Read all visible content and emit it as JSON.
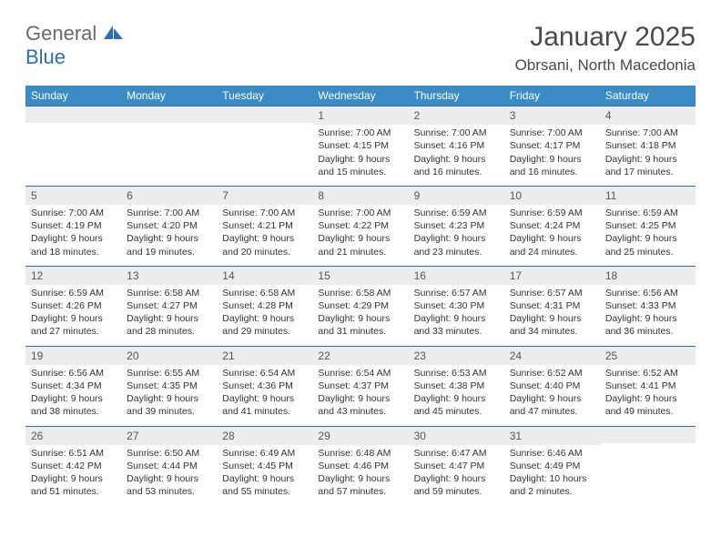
{
  "brand": {
    "word1": "General",
    "word2": "Blue"
  },
  "title": "January 2025",
  "location": "Obrsani, North Macedonia",
  "colors": {
    "header_bg": "#3b8bc5",
    "header_text": "#ffffff",
    "daynum_bg": "#ededed",
    "border": "#2f6fb0",
    "logo_gray": "#6a6a6a",
    "logo_blue": "#2f6fb0"
  },
  "weekdays": [
    "Sunday",
    "Monday",
    "Tuesday",
    "Wednesday",
    "Thursday",
    "Friday",
    "Saturday"
  ],
  "layout": {
    "columns": 7,
    "rows": 5,
    "cell_font_size_pt": 8,
    "header_font_size_pt": 9,
    "title_font_size_pt": 22
  },
  "weeks": [
    [
      null,
      null,
      null,
      {
        "n": "1",
        "sunrise": "7:00 AM",
        "sunset": "4:15 PM",
        "daylight": "9 hours and 15 minutes."
      },
      {
        "n": "2",
        "sunrise": "7:00 AM",
        "sunset": "4:16 PM",
        "daylight": "9 hours and 16 minutes."
      },
      {
        "n": "3",
        "sunrise": "7:00 AM",
        "sunset": "4:17 PM",
        "daylight": "9 hours and 16 minutes."
      },
      {
        "n": "4",
        "sunrise": "7:00 AM",
        "sunset": "4:18 PM",
        "daylight": "9 hours and 17 minutes."
      }
    ],
    [
      {
        "n": "5",
        "sunrise": "7:00 AM",
        "sunset": "4:19 PM",
        "daylight": "9 hours and 18 minutes."
      },
      {
        "n": "6",
        "sunrise": "7:00 AM",
        "sunset": "4:20 PM",
        "daylight": "9 hours and 19 minutes."
      },
      {
        "n": "7",
        "sunrise": "7:00 AM",
        "sunset": "4:21 PM",
        "daylight": "9 hours and 20 minutes."
      },
      {
        "n": "8",
        "sunrise": "7:00 AM",
        "sunset": "4:22 PM",
        "daylight": "9 hours and 21 minutes."
      },
      {
        "n": "9",
        "sunrise": "6:59 AM",
        "sunset": "4:23 PM",
        "daylight": "9 hours and 23 minutes."
      },
      {
        "n": "10",
        "sunrise": "6:59 AM",
        "sunset": "4:24 PM",
        "daylight": "9 hours and 24 minutes."
      },
      {
        "n": "11",
        "sunrise": "6:59 AM",
        "sunset": "4:25 PM",
        "daylight": "9 hours and 25 minutes."
      }
    ],
    [
      {
        "n": "12",
        "sunrise": "6:59 AM",
        "sunset": "4:26 PM",
        "daylight": "9 hours and 27 minutes."
      },
      {
        "n": "13",
        "sunrise": "6:58 AM",
        "sunset": "4:27 PM",
        "daylight": "9 hours and 28 minutes."
      },
      {
        "n": "14",
        "sunrise": "6:58 AM",
        "sunset": "4:28 PM",
        "daylight": "9 hours and 29 minutes."
      },
      {
        "n": "15",
        "sunrise": "6:58 AM",
        "sunset": "4:29 PM",
        "daylight": "9 hours and 31 minutes."
      },
      {
        "n": "16",
        "sunrise": "6:57 AM",
        "sunset": "4:30 PM",
        "daylight": "9 hours and 33 minutes."
      },
      {
        "n": "17",
        "sunrise": "6:57 AM",
        "sunset": "4:31 PM",
        "daylight": "9 hours and 34 minutes."
      },
      {
        "n": "18",
        "sunrise": "6:56 AM",
        "sunset": "4:33 PM",
        "daylight": "9 hours and 36 minutes."
      }
    ],
    [
      {
        "n": "19",
        "sunrise": "6:56 AM",
        "sunset": "4:34 PM",
        "daylight": "9 hours and 38 minutes."
      },
      {
        "n": "20",
        "sunrise": "6:55 AM",
        "sunset": "4:35 PM",
        "daylight": "9 hours and 39 minutes."
      },
      {
        "n": "21",
        "sunrise": "6:54 AM",
        "sunset": "4:36 PM",
        "daylight": "9 hours and 41 minutes."
      },
      {
        "n": "22",
        "sunrise": "6:54 AM",
        "sunset": "4:37 PM",
        "daylight": "9 hours and 43 minutes."
      },
      {
        "n": "23",
        "sunrise": "6:53 AM",
        "sunset": "4:38 PM",
        "daylight": "9 hours and 45 minutes."
      },
      {
        "n": "24",
        "sunrise": "6:52 AM",
        "sunset": "4:40 PM",
        "daylight": "9 hours and 47 minutes."
      },
      {
        "n": "25",
        "sunrise": "6:52 AM",
        "sunset": "4:41 PM",
        "daylight": "9 hours and 49 minutes."
      }
    ],
    [
      {
        "n": "26",
        "sunrise": "6:51 AM",
        "sunset": "4:42 PM",
        "daylight": "9 hours and 51 minutes."
      },
      {
        "n": "27",
        "sunrise": "6:50 AM",
        "sunset": "4:44 PM",
        "daylight": "9 hours and 53 minutes."
      },
      {
        "n": "28",
        "sunrise": "6:49 AM",
        "sunset": "4:45 PM",
        "daylight": "9 hours and 55 minutes."
      },
      {
        "n": "29",
        "sunrise": "6:48 AM",
        "sunset": "4:46 PM",
        "daylight": "9 hours and 57 minutes."
      },
      {
        "n": "30",
        "sunrise": "6:47 AM",
        "sunset": "4:47 PM",
        "daylight": "9 hours and 59 minutes."
      },
      {
        "n": "31",
        "sunrise": "6:46 AM",
        "sunset": "4:49 PM",
        "daylight": "10 hours and 2 minutes."
      },
      null
    ]
  ],
  "labels": {
    "sunrise": "Sunrise:",
    "sunset": "Sunset:",
    "daylight": "Daylight:"
  }
}
